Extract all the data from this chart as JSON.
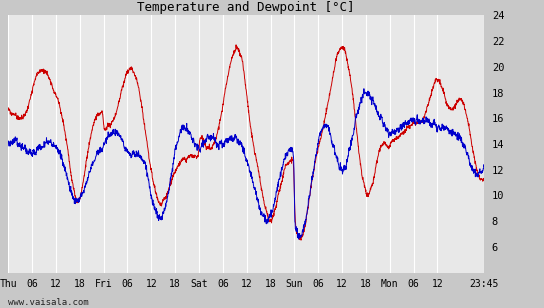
{
  "title": "Temperature and Dewpoint [°C]",
  "x_tick_labels": [
    "Thu",
    "06",
    "12",
    "18",
    "Fri",
    "06",
    "12",
    "18",
    "Sat",
    "06",
    "12",
    "18",
    "Sun",
    "06",
    "12",
    "18",
    "Mon",
    "06",
    "12",
    "23:45"
  ],
  "x_tick_positions": [
    0,
    6,
    12,
    18,
    24,
    30,
    36,
    42,
    48,
    54,
    60,
    66,
    72,
    78,
    84,
    90,
    96,
    102,
    108,
    119.75
  ],
  "ylim": [
    4,
    24
  ],
  "yticks": [
    4,
    6,
    8,
    10,
    12,
    14,
    16,
    18,
    20,
    22,
    24
  ],
  "ytick_labels": [
    "",
    "6",
    "8",
    "10",
    "12",
    "14",
    "16",
    "18",
    "20",
    "22",
    "24"
  ],
  "bg_color": "#c8c8c8",
  "plot_bg_color": "#e8e8e8",
  "grid_color": "#ffffff",
  "temp_color": "#cc0000",
  "dewpoint_color": "#0000cc",
  "line_width": 0.7,
  "watermark": "www.vaisala.com",
  "total_hours": 119.75,
  "n_points": 2000
}
